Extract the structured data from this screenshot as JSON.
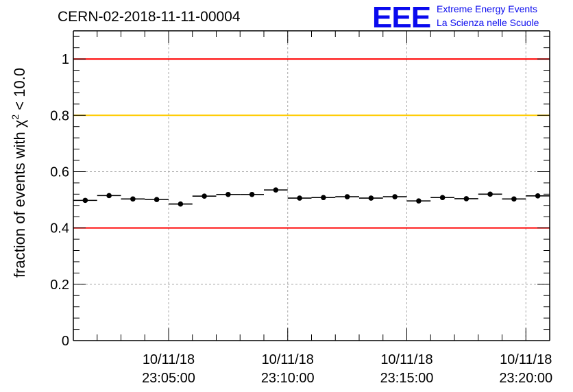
{
  "chart_data": {
    "type": "scatter",
    "title": "CERN-02-2018-11-11-00004",
    "ylabel_prefix": "fraction of events with ",
    "ylabel_symbol": "χ",
    "ylabel_sup": "2",
    "ylabel_suffix": " < 10.0",
    "xlabel": "",
    "ylim": [
      0,
      1.1
    ],
    "xlim": [
      "2018-11-10 23:01:00",
      "2018-11-10 23:21:00"
    ],
    "yticks": [
      0,
      0.2,
      0.4,
      0.6,
      0.8,
      1
    ],
    "ytick_labels": [
      "0",
      "0.2",
      "0.4",
      "0.6",
      "0.8",
      "1"
    ],
    "xticks": [
      "2018-11-10 23:05:00",
      "2018-11-10 23:10:00",
      "2018-11-10 23:15:00",
      "2018-11-10 23:20:00"
    ],
    "xtick_labels": [
      {
        "date": "10/11/18",
        "time": "23:05:00"
      },
      {
        "date": "10/11/18",
        "time": "23:10:00"
      },
      {
        "date": "10/11/18",
        "time": "23:15:00"
      },
      {
        "date": "10/11/18",
        "time": "23:20:00"
      }
    ],
    "grid": true,
    "reference_lines": [
      {
        "y": 1.0,
        "color": "#ff0000"
      },
      {
        "y": 0.8,
        "color": "#ffcc00"
      },
      {
        "y": 0.4,
        "color": "#ff0000"
      }
    ],
    "bin_width_minutes": 1,
    "series": [
      {
        "color": "#000000",
        "x": [
          "2018-11-10 23:01:30",
          "2018-11-10 23:02:30",
          "2018-11-10 23:03:30",
          "2018-11-10 23:04:30",
          "2018-11-10 23:05:30",
          "2018-11-10 23:06:30",
          "2018-11-10 23:07:30",
          "2018-11-10 23:08:30",
          "2018-11-10 23:09:30",
          "2018-11-10 23:10:30",
          "2018-11-10 23:11:30",
          "2018-11-10 23:12:30",
          "2018-11-10 23:13:30",
          "2018-11-10 23:14:30",
          "2018-11-10 23:15:30",
          "2018-11-10 23:16:30",
          "2018-11-10 23:17:30",
          "2018-11-10 23:18:30",
          "2018-11-10 23:19:30",
          "2018-11-10 23:20:30"
        ],
        "values": [
          0.498,
          0.515,
          0.503,
          0.501,
          0.485,
          0.513,
          0.519,
          0.519,
          0.535,
          0.506,
          0.508,
          0.511,
          0.506,
          0.511,
          0.496,
          0.508,
          0.504,
          0.52,
          0.503,
          0.514
        ]
      }
    ]
  },
  "logo": {
    "mark": "EEE",
    "line1": "Extreme Energy Events",
    "line2": "La Scienza nelle Scuole"
  }
}
